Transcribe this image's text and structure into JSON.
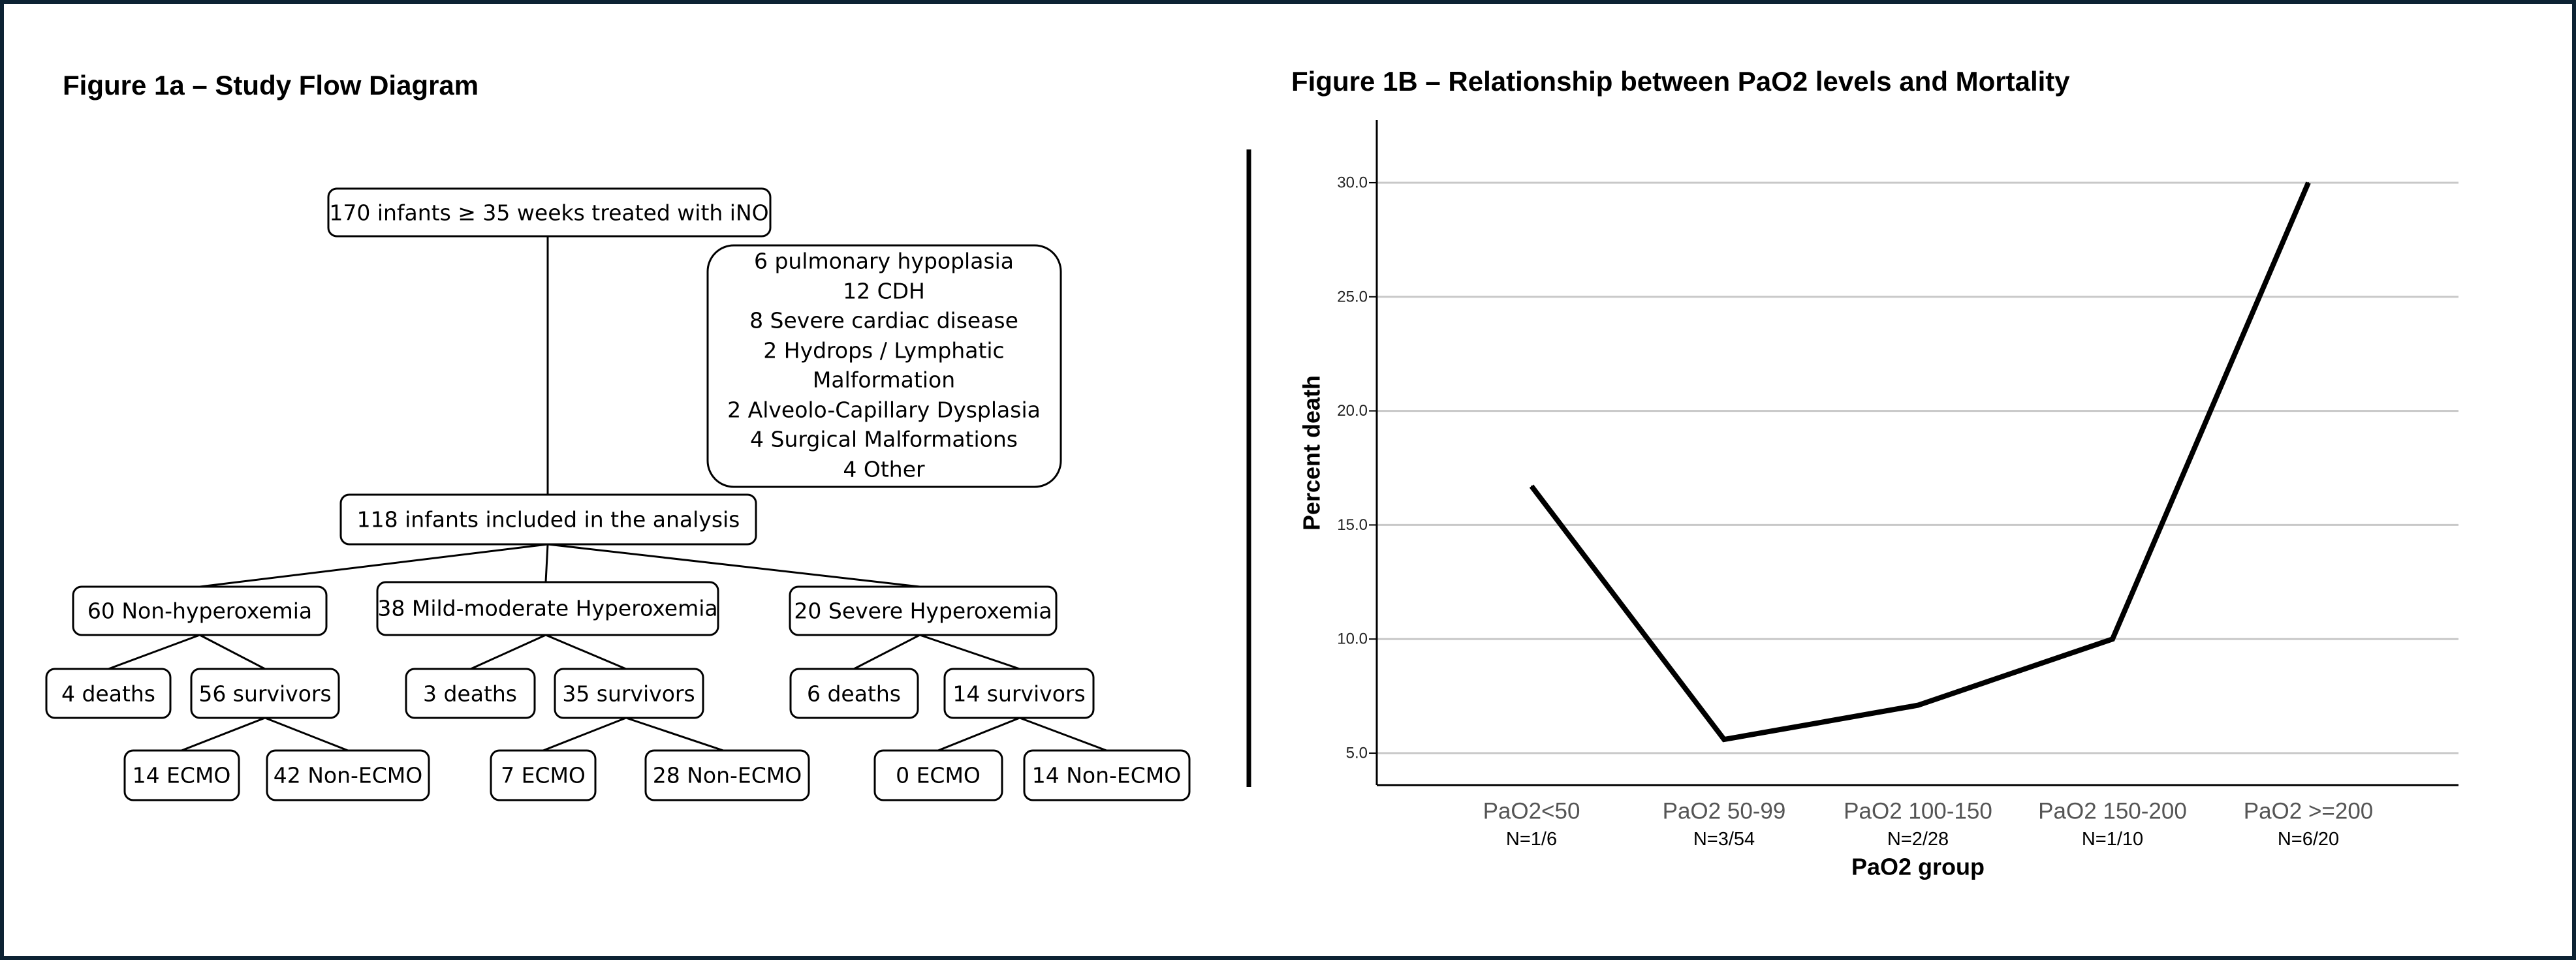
{
  "figure_1a": {
    "title": "Figure 1a – Study Flow Diagram",
    "nodes": {
      "root": "170 infants ≥ 35 weeks treated with iNO",
      "included": "118 infants included in the analysis",
      "non_hyper": "60 Non-hyperoxemia",
      "mild": "38 Mild-moderate Hyperoxemia",
      "severe": "20 Severe Hyperoxemia",
      "non_hyper_deaths": "4 deaths",
      "non_hyper_survivors": "56 survivors",
      "mild_deaths": "3 deaths",
      "mild_survivors": "35 survivors",
      "severe_deaths": "6 deaths",
      "severe_survivors": "14 survivors",
      "non_hyper_ecmo": "14 ECMO",
      "non_hyper_non_ecmo": "42 Non-ECMO",
      "mild_ecmo": "7 ECMO",
      "mild_non_ecmo": "28 Non-ECMO",
      "severe_ecmo": "0 ECMO",
      "severe_non_ecmo": "14 Non-ECMO"
    },
    "exclusions": [
      "6 pulmonary hypoplasia",
      "12 CDH",
      "8 Severe cardiac disease",
      "2 Hydrops / Lymphatic",
      "Malformation",
      "2 Alveolo-Capillary Dysplasia",
      "4 Surgical Malformations",
      "4 Other"
    ]
  },
  "figure_1b": {
    "title": "Figure 1B – Relationship between PaO2 levels and Mortality"
  },
  "chart_data": {
    "type": "line",
    "title": "Figure 1B – Relationship between PaO2 levels and Mortality",
    "xlabel": "PaO2 group",
    "ylabel": "Percent death",
    "categories": [
      "PaO2<50",
      "PaO2 50-99",
      "PaO2 100-150",
      "PaO2 150-200",
      "PaO2 >=200"
    ],
    "n_labels": [
      "N=1/6",
      "N=3/54",
      "N=2/28",
      "N=1/10",
      "N=6/20"
    ],
    "values": [
      16.7,
      5.6,
      7.1,
      10.0,
      30.0
    ],
    "yticks": [
      "5.0",
      "10.0",
      "15.0",
      "20.0",
      "25.0",
      "30.0"
    ],
    "ylim": [
      3.6,
      31.6
    ],
    "grid": true,
    "line_color": "#000000",
    "grid_color": "#c8c8c8"
  }
}
